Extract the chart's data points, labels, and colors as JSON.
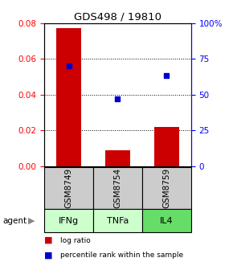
{
  "title": "GDS498 / 19810",
  "samples": [
    "GSM8749",
    "GSM8754",
    "GSM8759"
  ],
  "agents": [
    "IFNg",
    "TNFa",
    "IL4"
  ],
  "agent_colors": [
    "#ccffcc",
    "#ccffcc",
    "#66dd66"
  ],
  "log_ratios": [
    0.077,
    0.009,
    0.022
  ],
  "percentile_ranks": [
    70.0,
    47.0,
    63.0
  ],
  "bar_color": "#cc0000",
  "dot_color": "#0000cc",
  "ylim_left": [
    0,
    0.08
  ],
  "ylim_right": [
    0,
    100
  ],
  "yticks_left": [
    0,
    0.02,
    0.04,
    0.06,
    0.08
  ],
  "yticks_right": [
    0,
    25,
    50,
    75,
    100
  ],
  "ytick_labels_right": [
    "0",
    "25",
    "50",
    "75",
    "100%"
  ],
  "sample_box_color": "#cccccc",
  "legend_bar_label": "log ratio",
  "legend_dot_label": "percentile rank within the sample",
  "bar_width": 0.5
}
